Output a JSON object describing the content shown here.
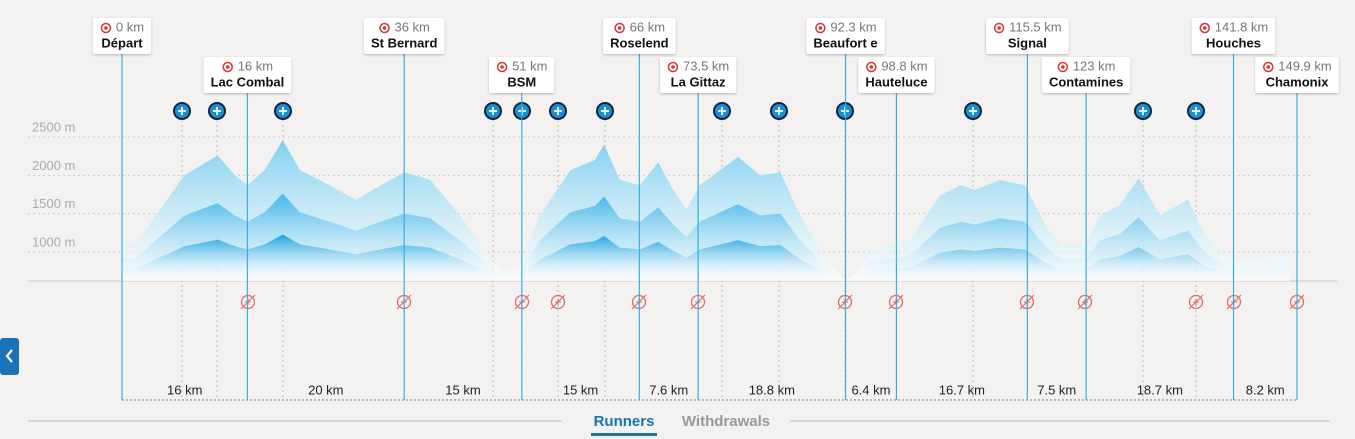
{
  "checkpoints": [
    {
      "km": {
        "value": 0,
        "label": "0 km"
      },
      "name": "Départ"
    },
    {
      "km": {
        "value": 16,
        "label": "16 km"
      },
      "name": "Lac Combal"
    },
    {
      "km": {
        "value": 36,
        "label": "36 km"
      },
      "name": "St Bernard"
    },
    {
      "km": {
        "value": 51,
        "label": "51 km"
      },
      "name": "BSM"
    },
    {
      "km": {
        "value": 66,
        "label": "66 km"
      },
      "name": "Roselend"
    },
    {
      "km": {
        "value": 73.5,
        "label": "73.5 km"
      },
      "name": "La Gittaz"
    },
    {
      "km": {
        "value": 92.3,
        "label": "92.3 km"
      },
      "name": "Beaufort e"
    },
    {
      "km": {
        "value": 98.8,
        "label": "98.8 km"
      },
      "name": "Hauteluce"
    },
    {
      "km": {
        "value": 115.5,
        "label": "115.5 km"
      },
      "name": "Signal"
    },
    {
      "km": {
        "value": 123,
        "label": "123 km"
      },
      "name": "Contamines"
    },
    {
      "km": {
        "value": 141.8,
        "label": "141.8 km"
      },
      "name": "Houches"
    },
    {
      "km": {
        "value": 149.9,
        "label": "149.9 km"
      },
      "name": "Chamonix"
    }
  ],
  "segments": [
    "16 km",
    "20 km",
    "15 km",
    "15 km",
    "7.6 km",
    "18.8 km",
    "6.4 km",
    "16.7 km",
    "7.5 km",
    "18.7 km",
    "8.2 km"
  ],
  "profile": {
    "x": [
      0,
      1.7,
      4.8,
      8,
      12.2,
      14.4,
      16,
      18.2,
      20.5,
      22.7,
      26.5,
      29.8,
      33,
      36,
      39.3,
      43.1,
      47,
      48.9,
      50.8,
      53.3,
      57.2,
      60.3,
      61.5,
      63.5,
      66.1,
      68.4,
      70.2,
      72,
      73.7,
      78.6,
      81.4,
      84,
      86.5,
      90.3,
      92.2,
      93.5,
      95.4,
      98,
      100.5,
      104.4,
      107,
      108.8,
      112,
      115.2,
      117.8,
      119.7,
      122.9,
      124.8,
      127.3,
      129.7,
      132.4,
      136,
      138.2,
      141.4,
      145.1,
      149
    ],
    "values": [
      1130,
      1090,
      1550,
      2000,
      2260,
      2000,
      1870,
      2070,
      2460,
      2070,
      1870,
      1680,
      1870,
      2040,
      1940,
      1480,
      920,
      740,
      830,
      1480,
      2070,
      2200,
      2400,
      1940,
      1870,
      2170,
      1830,
      1550,
      1870,
      2240,
      2000,
      2040,
      1480,
      830,
      635,
      700,
      1030,
      1090,
      1160,
      1740,
      1870,
      1810,
      1940,
      1870,
      1350,
      1090,
      1090,
      1480,
      1610,
      1960,
      1480,
      1680,
      1220,
      900,
      920,
      950
    ],
    "xlim": [
      0,
      149.9
    ],
    "yticks": [
      {
        "value": 1000,
        "label": "1000 m"
      },
      {
        "value": 1500,
        "label": "1500 m"
      },
      {
        "value": 2000,
        "label": "2000 m"
      },
      {
        "value": 2500,
        "label": "2500 m"
      }
    ]
  },
  "tabs": [
    "Runners",
    "Withdrawals"
  ]
}
